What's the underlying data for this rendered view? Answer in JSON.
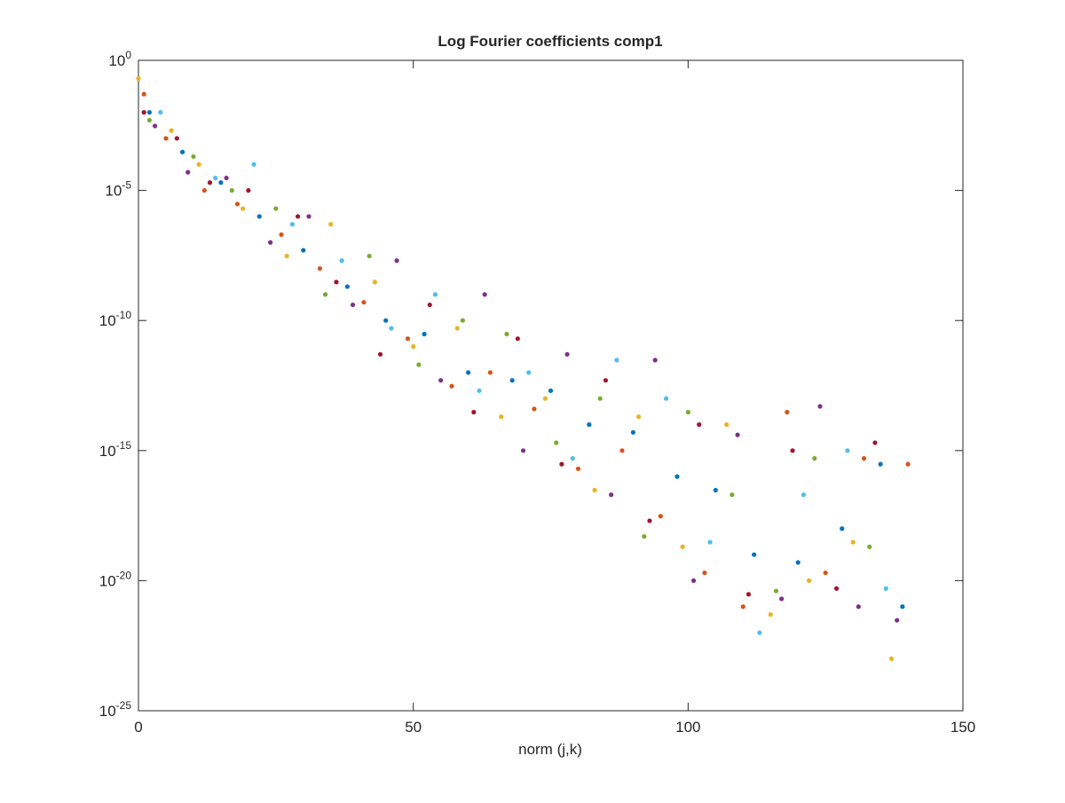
{
  "chart_data": {
    "type": "scatter",
    "title": "Log Fourier coefficients comp1",
    "x_label": "norm (j,k)",
    "log_y": true,
    "xlim": [
      0,
      150
    ],
    "xticks": [
      0,
      50,
      100,
      150
    ],
    "ylim": [
      1e-25,
      1
    ],
    "yticks": [
      {
        "value": 1e-25,
        "label": "10^{-25}"
      },
      {
        "value": 1e-20,
        "label": "10^{-20}"
      },
      {
        "value": 1e-15,
        "label": "10^{-15}"
      },
      {
        "value": 1e-10,
        "label": "10^{-10}"
      },
      {
        "value": 1e-05,
        "label": "10^{-5}"
      },
      {
        "value": 1,
        "label": "10^{0}"
      }
    ],
    "series": [
      {
        "color": "#0072BD",
        "x": [
          2,
          8,
          15,
          22,
          30,
          38,
          45,
          52,
          60,
          68,
          75,
          82,
          90,
          98,
          105,
          112,
          120,
          128,
          135,
          139
        ],
        "values": [
          0.01,
          0.0003,
          2e-05,
          1e-06,
          5e-08,
          2e-09,
          1e-10,
          3e-11,
          1e-12,
          5e-13,
          2e-13,
          1e-14,
          5e-15,
          1e-16,
          3e-17,
          1e-19,
          5e-20,
          1e-18,
          3e-16,
          1e-21
        ]
      },
      {
        "color": "#D95319",
        "x": [
          1,
          5,
          12,
          18,
          26,
          33,
          41,
          49,
          57,
          64,
          72,
          80,
          88,
          95,
          103,
          110,
          118,
          125,
          132,
          140
        ],
        "values": [
          0.05,
          0.001,
          1e-05,
          3e-06,
          2e-07,
          1e-08,
          5e-10,
          2e-11,
          3e-13,
          1e-12,
          4e-14,
          2e-16,
          1e-15,
          3e-18,
          2e-20,
          1e-21,
          3e-14,
          2e-20,
          5e-16,
          3e-16
        ]
      },
      {
        "color": "#EDB120",
        "x": [
          0,
          6,
          11,
          19,
          27,
          35,
          43,
          50,
          58,
          66,
          74,
          83,
          91,
          99,
          107,
          115,
          122,
          130,
          137
        ],
        "values": [
          0.2,
          0.002,
          0.0001,
          2e-06,
          3e-08,
          5e-07,
          3e-09,
          1e-11,
          5e-11,
          2e-14,
          1e-13,
          3e-17,
          2e-14,
          2e-19,
          1e-14,
          5e-22,
          1e-20,
          3e-19,
          1e-23
        ]
      },
      {
        "color": "#7E2F8E",
        "x": [
          3,
          9,
          16,
          24,
          31,
          39,
          47,
          55,
          63,
          70,
          78,
          86,
          94,
          101,
          109,
          117,
          124,
          131,
          138
        ],
        "values": [
          0.003,
          5e-05,
          3e-05,
          1e-07,
          1e-06,
          4e-10,
          2e-08,
          5e-13,
          1e-09,
          1e-15,
          5e-12,
          2e-17,
          3e-12,
          1e-20,
          4e-15,
          2e-21,
          5e-14,
          1e-21,
          3e-22
        ]
      },
      {
        "color": "#77AC30",
        "x": [
          2,
          10,
          17,
          25,
          34,
          42,
          51,
          59,
          67,
          76,
          84,
          92,
          100,
          108,
          116,
          123,
          133
        ],
        "values": [
          0.005,
          0.0002,
          1e-05,
          2e-06,
          1e-09,
          3e-08,
          2e-12,
          1e-10,
          3e-11,
          2e-15,
          1e-13,
          5e-19,
          3e-14,
          2e-17,
          4e-21,
          5e-16,
          2e-19
        ]
      },
      {
        "color": "#4DBEEE",
        "x": [
          4,
          14,
          21,
          28,
          37,
          46,
          54,
          62,
          71,
          79,
          87,
          96,
          104,
          113,
          121,
          129,
          136
        ],
        "values": [
          0.01,
          3e-05,
          0.0001,
          5e-07,
          2e-08,
          5e-11,
          1e-09,
          2e-13,
          1e-12,
          5e-16,
          3e-12,
          1e-13,
          3e-19,
          1e-22,
          2e-17,
          1e-15,
          5e-21
        ]
      },
      {
        "color": "#A2142F",
        "x": [
          1,
          7,
          13,
          20,
          29,
          36,
          44,
          53,
          61,
          69,
          77,
          85,
          93,
          102,
          111,
          119,
          127,
          134
        ],
        "values": [
          0.01,
          0.001,
          2e-05,
          1e-05,
          1e-06,
          3e-09,
          5e-12,
          4e-10,
          3e-14,
          2e-11,
          3e-16,
          5e-13,
          2e-18,
          1e-14,
          3e-21,
          1e-15,
          5e-21,
          2e-15
        ]
      }
    ]
  }
}
